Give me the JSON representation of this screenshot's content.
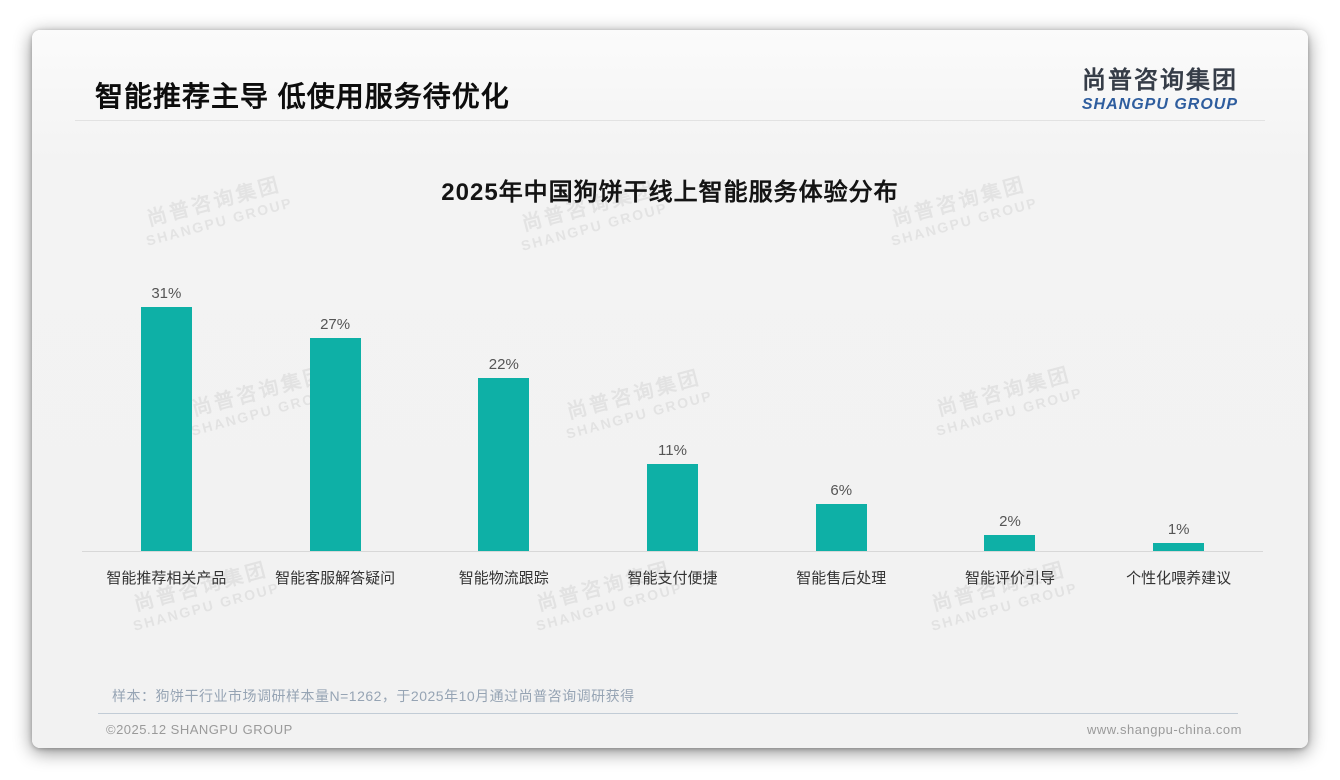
{
  "header": {
    "title": "智能推荐主导 低使用服务待优化",
    "logo_cn": "尚普咨询集团",
    "logo_en": "SHANGPU GROUP"
  },
  "watermark": {
    "cn": "尚普咨询集团",
    "en": "SHANGPU GROUP"
  },
  "chart_data": {
    "type": "bar",
    "title": "2025年中国狗饼干线上智能服务体验分布",
    "categories": [
      "智能推荐相关产品",
      "智能客服解答疑问",
      "智能物流跟踪",
      "智能支付便捷",
      "智能售后处理",
      "智能评价引导",
      "个性化喂养建议"
    ],
    "values": [
      31,
      27,
      22,
      11,
      6,
      2,
      1
    ],
    "value_labels": [
      "31%",
      "27%",
      "22%",
      "11%",
      "6%",
      "2%",
      "1%"
    ],
    "unit": "%",
    "ylim": [
      0,
      31
    ],
    "grid": false,
    "legend": false,
    "bar_color": "#0eb0a6",
    "value_label_color": "#555555",
    "category_label_color": "#333333"
  },
  "footer": {
    "note": "样本：狗饼干行业市场调研样本量N=1262，于2025年10月通过尚普咨询调研获得",
    "copyright": "©2025.12 SHANGPU GROUP",
    "website": "www.shangpu-china.com"
  },
  "colors": {
    "bar": "#0eb0a6",
    "logo_blue": "#2e5d9e",
    "card_background": "#f2f2f2",
    "note_text": "#96a4b4"
  }
}
